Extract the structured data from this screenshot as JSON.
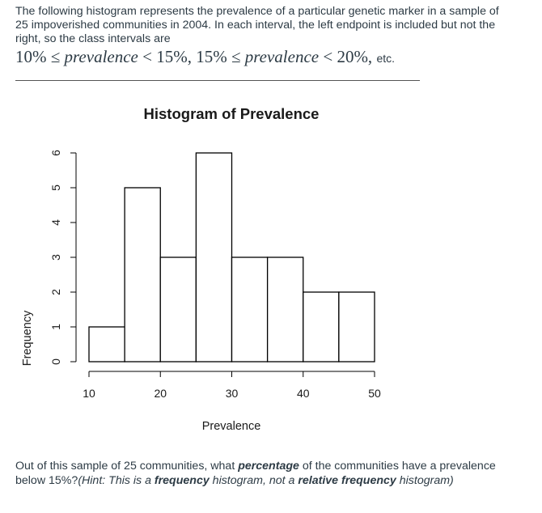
{
  "intro": {
    "text": "The following histogram represents the prevalence of a particular genetic marker in a sample of 25 impoverished communities in 2004. In each interval, the left endpoint is included but not the right, so the class intervals are",
    "math": {
      "a1": "10%",
      "le1": "≤",
      "v1": "prevalence",
      "lt1": "<",
      "b1": "15%,",
      "a2": "15%",
      "le2": "≤",
      "v2": "prevalence",
      "lt2": "<",
      "b2": "20%,",
      "etc": "etc."
    }
  },
  "chart_data": {
    "type": "bar",
    "title": "Histogram of Prevalence",
    "xlabel": "Prevalence",
    "ylabel": "Frequency",
    "bins": [
      [
        10,
        15
      ],
      [
        15,
        20
      ],
      [
        20,
        25
      ],
      [
        25,
        30
      ],
      [
        30,
        35
      ],
      [
        35,
        40
      ],
      [
        40,
        45
      ],
      [
        45,
        50
      ]
    ],
    "values": [
      1,
      5,
      3,
      6,
      3,
      3,
      2,
      2
    ],
    "xticks": [
      10,
      20,
      30,
      40,
      50
    ],
    "yticks": [
      0,
      1,
      2,
      3,
      4,
      5,
      6
    ],
    "xlim": [
      10,
      50
    ],
    "ylim": [
      0,
      6
    ],
    "grid": false,
    "colors": {
      "bar_fill": "#ffffff",
      "bar_stroke": "#000000"
    }
  },
  "question": {
    "p1": "Out of this sample of 25 communities, what ",
    "p2": "percentage",
    "p3": " of the communities have a prevalence below 15%?",
    "p4": "(Hint: This is a ",
    "p5": "frequency",
    "p6": " histogram, not a ",
    "p7": "relative frequency",
    "p8": " histogram)"
  }
}
